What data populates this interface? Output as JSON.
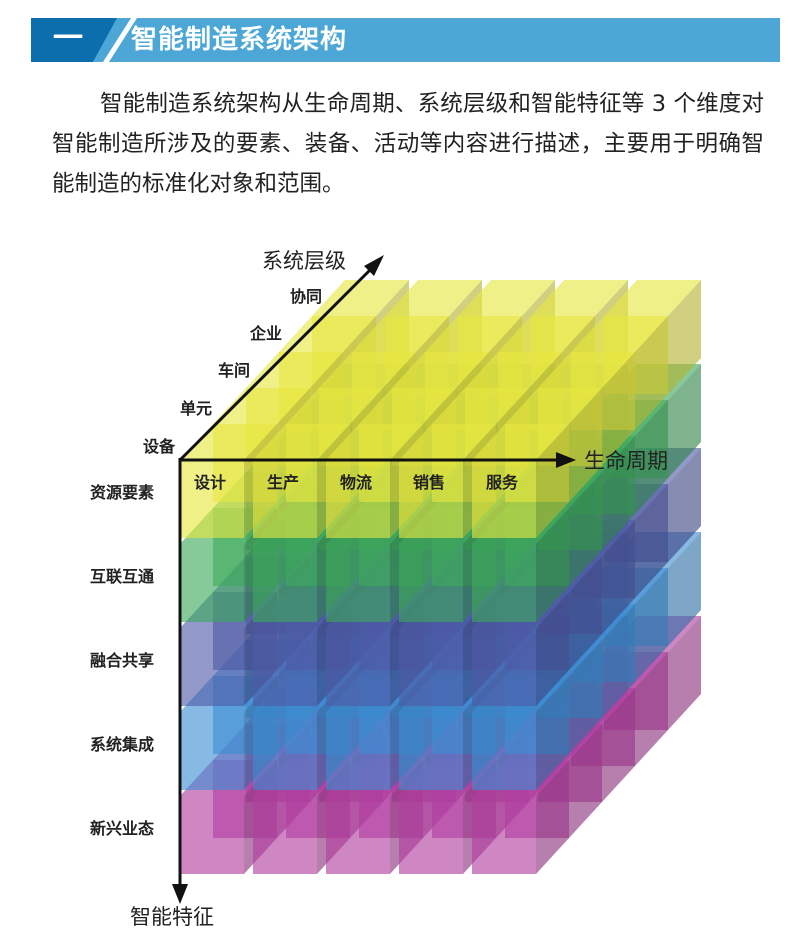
{
  "header": {
    "number": "一",
    "title": "智能制造系统架构"
  },
  "paragraph": "智能制造系统架构从生命周期、系统层级和智能特征等 3 个维度对智能制造所涉及的要素、装备、活动等内容进行描述，主要用于明确智能制造的标准化对象和范围。",
  "diagram": {
    "axes": {
      "lifecycle": "生命周期",
      "system_level": "系统层级",
      "intelligent_features": "智能特征"
    },
    "lifecycle_items": [
      "设计",
      "生产",
      "物流",
      "销售",
      "服务"
    ],
    "system_level_items": [
      "设备",
      "单元",
      "车间",
      "企业",
      "协同"
    ],
    "feature_items": [
      "资源要素",
      "互联互通",
      "融合共享",
      "系统集成",
      "新兴业态"
    ],
    "layer_colors": [
      "#e6e640",
      "#3daa5c",
      "#4f5aa6",
      "#3b8ed4",
      "#b13d9f"
    ]
  }
}
